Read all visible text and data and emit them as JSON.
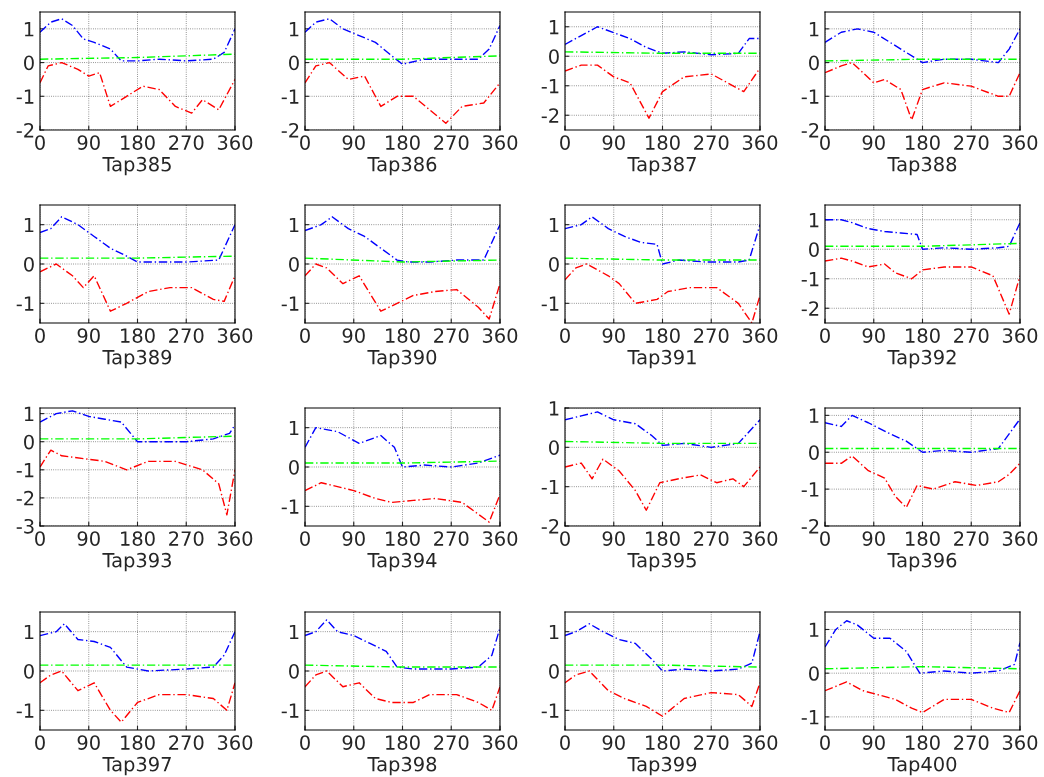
{
  "chart_data": [
    {
      "type": "line",
      "xlabel": "Tap385",
      "xlim": [
        0,
        360
      ],
      "xticks": [
        0,
        90,
        180,
        270,
        360
      ],
      "ylim": [
        -2,
        1.5
      ],
      "yticks": [
        -2,
        -1,
        0,
        1
      ],
      "grid": true,
      "line_style": "dashed",
      "series": [
        {
          "color": "#0000ff",
          "x": [
            0,
            20,
            40,
            60,
            80,
            100,
            130,
            150,
            180,
            220,
            270,
            320,
            340,
            360
          ],
          "values": [
            0.9,
            1.2,
            1.3,
            1.1,
            0.7,
            0.6,
            0.4,
            0.05,
            0.05,
            0.1,
            0.05,
            0.1,
            0.3,
            1.0
          ]
        },
        {
          "color": "#00ff00",
          "x": [
            0,
            180,
            360
          ],
          "values": [
            0.1,
            0.15,
            0.25
          ]
        },
        {
          "color": "#ff0000",
          "x": [
            0,
            15,
            40,
            70,
            90,
            110,
            130,
            160,
            190,
            220,
            250,
            280,
            300,
            330,
            360
          ],
          "values": [
            -0.6,
            -0.1,
            0,
            -0.2,
            -0.4,
            -0.3,
            -1.3,
            -1.0,
            -0.7,
            -0.8,
            -1.3,
            -1.5,
            -1.1,
            -1.4,
            -0.5
          ]
        }
      ]
    },
    {
      "type": "line",
      "xlabel": "Tap386",
      "xlim": [
        0,
        360
      ],
      "xticks": [
        0,
        90,
        180,
        270,
        360
      ],
      "ylim": [
        -2,
        1.5
      ],
      "yticks": [
        -2,
        -1,
        0,
        1
      ],
      "grid": true,
      "line_style": "dashed",
      "series": [
        {
          "color": "#0000ff",
          "x": [
            0,
            20,
            45,
            70,
            100,
            130,
            160,
            180,
            220,
            270,
            320,
            340,
            360
          ],
          "values": [
            0.9,
            1.2,
            1.3,
            1.0,
            0.8,
            0.6,
            0.2,
            -0.05,
            0.1,
            0.1,
            0.1,
            0.4,
            1.1
          ]
        },
        {
          "color": "#00ff00",
          "x": [
            0,
            180,
            360
          ],
          "values": [
            0.1,
            0.1,
            0.2
          ]
        },
        {
          "color": "#ff0000",
          "x": [
            0,
            20,
            45,
            80,
            110,
            140,
            170,
            200,
            230,
            260,
            290,
            330,
            360
          ],
          "values": [
            -0.6,
            -0.1,
            0,
            -0.5,
            -0.4,
            -1.3,
            -1.0,
            -1.0,
            -1.4,
            -1.8,
            -1.3,
            -1.2,
            -0.6
          ]
        }
      ]
    },
    {
      "type": "line",
      "xlabel": "Tap387",
      "xlim": [
        0,
        360
      ],
      "xticks": [
        0,
        90,
        180,
        270,
        360
      ],
      "ylim": [
        -2.5,
        1.5
      ],
      "yticks": [
        -2,
        -1,
        0,
        1
      ],
      "grid": true,
      "line_style": "dashed",
      "series": [
        {
          "color": "#0000ff",
          "x": [
            0,
            30,
            60,
            90,
            120,
            150,
            180,
            220,
            270,
            320,
            340,
            360
          ],
          "values": [
            0.4,
            0.7,
            1.0,
            0.8,
            0.6,
            0.3,
            0.1,
            0.15,
            0.05,
            0.1,
            0.6,
            0.6
          ]
        },
        {
          "color": "#00ff00",
          "x": [
            0,
            180,
            360
          ],
          "values": [
            0.15,
            0.1,
            0.1
          ]
        },
        {
          "color": "#ff0000",
          "x": [
            0,
            30,
            60,
            90,
            120,
            155,
            180,
            220,
            270,
            300,
            330,
            360
          ],
          "values": [
            -0.5,
            -0.3,
            -0.3,
            -0.7,
            -0.9,
            -2.1,
            -1.2,
            -0.7,
            -0.6,
            -0.9,
            -1.2,
            -0.4
          ]
        }
      ]
    },
    {
      "type": "line",
      "xlabel": "Tap388",
      "xlim": [
        0,
        360
      ],
      "xticks": [
        0,
        90,
        180,
        270,
        360
      ],
      "ylim": [
        -2,
        1.5
      ],
      "yticks": [
        -2,
        -1,
        0,
        1
      ],
      "grid": true,
      "line_style": "dashed",
      "series": [
        {
          "color": "#0000ff",
          "x": [
            0,
            30,
            60,
            90,
            120,
            150,
            180,
            220,
            270,
            320,
            340,
            360
          ],
          "values": [
            0.6,
            0.9,
            1.0,
            0.9,
            0.6,
            0.3,
            0.0,
            0.1,
            0.1,
            0.0,
            0.4,
            1.0
          ]
        },
        {
          "color": "#00ff00",
          "x": [
            0,
            180,
            360
          ],
          "values": [
            0.05,
            0.1,
            0.1
          ]
        },
        {
          "color": "#ff0000",
          "x": [
            0,
            30,
            50,
            90,
            110,
            140,
            160,
            180,
            220,
            270,
            320,
            340,
            360
          ],
          "values": [
            -0.3,
            -0.1,
            0,
            -0.6,
            -0.5,
            -0.8,
            -1.7,
            -0.8,
            -0.6,
            -0.7,
            -1.0,
            -1.0,
            -0.3
          ]
        }
      ]
    },
    {
      "type": "line",
      "xlabel": "Tap389",
      "xlim": [
        0,
        360
      ],
      "xticks": [
        0,
        90,
        180,
        270,
        360
      ],
      "ylim": [
        -1.5,
        1.5
      ],
      "yticks": [
        -1,
        0,
        1
      ],
      "grid": true,
      "line_style": "dashed",
      "series": [
        {
          "color": "#0000ff",
          "x": [
            0,
            20,
            40,
            70,
            100,
            130,
            160,
            180,
            220,
            270,
            330,
            360
          ],
          "values": [
            0.8,
            0.9,
            1.2,
            1.0,
            0.7,
            0.4,
            0.2,
            0.05,
            0.05,
            0.05,
            0.1,
            1.0
          ]
        },
        {
          "color": "#00ff00",
          "x": [
            0,
            180,
            360
          ],
          "values": [
            0.15,
            0.15,
            0.2
          ]
        },
        {
          "color": "#ff0000",
          "x": [
            0,
            30,
            60,
            80,
            100,
            130,
            160,
            200,
            240,
            280,
            320,
            340,
            360
          ],
          "values": [
            -0.2,
            0,
            -0.3,
            -0.6,
            -0.3,
            -1.2,
            -1.0,
            -0.7,
            -0.6,
            -0.6,
            -0.9,
            -0.95,
            -0.3
          ]
        }
      ]
    },
    {
      "type": "line",
      "xlabel": "Tap390",
      "xlim": [
        0,
        360
      ],
      "xticks": [
        0,
        90,
        180,
        270,
        360
      ],
      "ylim": [
        -1.5,
        1.5
      ],
      "yticks": [
        -1,
        0,
        1
      ],
      "grid": true,
      "line_style": "dashed",
      "series": [
        {
          "color": "#0000ff",
          "x": [
            0,
            30,
            50,
            80,
            110,
            140,
            170,
            190,
            230,
            280,
            330,
            360
          ],
          "values": [
            0.85,
            1.0,
            1.2,
            0.9,
            0.7,
            0.4,
            0.1,
            0.05,
            0.05,
            0.1,
            0.1,
            1.0
          ]
        },
        {
          "color": "#00ff00",
          "x": [
            0,
            180,
            360
          ],
          "values": [
            0.15,
            0.05,
            0.1
          ]
        },
        {
          "color": "#ff0000",
          "x": [
            0,
            20,
            40,
            70,
            100,
            140,
            170,
            200,
            240,
            280,
            320,
            340,
            360
          ],
          "values": [
            -0.3,
            0,
            -0.1,
            -0.5,
            -0.3,
            -1.2,
            -1.0,
            -0.8,
            -0.7,
            -0.65,
            -1.1,
            -1.4,
            -0.5
          ]
        }
      ]
    },
    {
      "type": "line",
      "xlabel": "Tap391",
      "xlim": [
        0,
        360
      ],
      "xticks": [
        0,
        90,
        180,
        270,
        360
      ],
      "ylim": [
        -1.5,
        1.5
      ],
      "yticks": [
        -1,
        0,
        1
      ],
      "grid": true,
      "line_style": "dashed",
      "series": [
        {
          "color": "#0000ff",
          "x": [
            0,
            30,
            50,
            80,
            110,
            140,
            170,
            180,
            210,
            260,
            320,
            340,
            360
          ],
          "values": [
            0.9,
            1.0,
            1.2,
            0.9,
            0.7,
            0.55,
            0.5,
            0.0,
            0.1,
            0.05,
            0.05,
            0.1,
            1.0
          ]
        },
        {
          "color": "#00ff00",
          "x": [
            0,
            180,
            360
          ],
          "values": [
            0.15,
            0.1,
            0.1
          ]
        },
        {
          "color": "#ff0000",
          "x": [
            0,
            20,
            40,
            80,
            100,
            130,
            170,
            190,
            230,
            280,
            320,
            345,
            360
          ],
          "values": [
            -0.4,
            -0.1,
            0,
            -0.3,
            -0.5,
            -1.0,
            -0.9,
            -0.7,
            -0.6,
            -0.6,
            -1.0,
            -1.5,
            -0.8
          ]
        }
      ]
    },
    {
      "type": "line",
      "xlabel": "Tap392",
      "xlim": [
        0,
        360
      ],
      "xticks": [
        0,
        90,
        180,
        270,
        360
      ],
      "ylim": [
        -2.5,
        1.5
      ],
      "yticks": [
        -2,
        -1,
        0,
        1
      ],
      "grid": true,
      "line_style": "dashed",
      "series": [
        {
          "color": "#0000ff",
          "x": [
            0,
            30,
            50,
            80,
            110,
            140,
            170,
            180,
            220,
            270,
            320,
            340,
            360
          ],
          "values": [
            1.0,
            1.0,
            0.9,
            0.7,
            0.6,
            0.55,
            0.5,
            0.0,
            0.05,
            0.0,
            0.05,
            0.1,
            0.9
          ]
        },
        {
          "color": "#00ff00",
          "x": [
            0,
            180,
            360
          ],
          "values": [
            0.1,
            0.1,
            0.2
          ]
        },
        {
          "color": "#ff0000",
          "x": [
            0,
            30,
            50,
            80,
            110,
            130,
            160,
            180,
            220,
            270,
            310,
            340,
            360
          ],
          "values": [
            -0.4,
            -0.3,
            -0.4,
            -0.6,
            -0.5,
            -0.8,
            -1.0,
            -0.7,
            -0.6,
            -0.6,
            -0.9,
            -2.2,
            -0.9
          ]
        }
      ]
    },
    {
      "type": "line",
      "xlabel": "Tap393",
      "xlim": [
        0,
        360
      ],
      "xticks": [
        0,
        90,
        180,
        270,
        360
      ],
      "ylim": [
        -3,
        1.2
      ],
      "yticks": [
        -3,
        -2,
        -1,
        0,
        1
      ],
      "grid": true,
      "line_style": "dashed",
      "series": [
        {
          "color": "#0000ff",
          "x": [
            0,
            30,
            60,
            90,
            120,
            150,
            180,
            220,
            270,
            320,
            350,
            360
          ],
          "values": [
            0.7,
            1.0,
            1.1,
            0.9,
            0.8,
            0.7,
            0.0,
            0.0,
            0.0,
            0.1,
            0.3,
            0.6
          ]
        },
        {
          "color": "#00ff00",
          "x": [
            0,
            180,
            360
          ],
          "values": [
            0.1,
            0.1,
            0.2
          ]
        },
        {
          "color": "#ff0000",
          "x": [
            0,
            20,
            40,
            80,
            120,
            160,
            200,
            250,
            300,
            330,
            345,
            360
          ],
          "values": [
            -0.9,
            -0.3,
            -0.5,
            -0.6,
            -0.7,
            -1.0,
            -0.7,
            -0.7,
            -1.0,
            -1.5,
            -2.6,
            -1.0
          ]
        }
      ]
    },
    {
      "type": "line",
      "xlabel": "Tap394",
      "xlim": [
        0,
        360
      ],
      "xticks": [
        0,
        90,
        180,
        270,
        360
      ],
      "ylim": [
        -1.5,
        1.5
      ],
      "yticks": [
        -1,
        0,
        1
      ],
      "grid": true,
      "line_style": "dashed",
      "series": [
        {
          "color": "#0000ff",
          "x": [
            0,
            20,
            60,
            100,
            140,
            165,
            180,
            220,
            270,
            320,
            360
          ],
          "values": [
            0.5,
            1.0,
            0.9,
            0.6,
            0.8,
            0.5,
            0.0,
            0.05,
            0.0,
            0.1,
            0.3
          ]
        },
        {
          "color": "#00ff00",
          "x": [
            0,
            180,
            360
          ],
          "values": [
            0.1,
            0.1,
            0.15
          ]
        },
        {
          "color": "#ff0000",
          "x": [
            0,
            30,
            60,
            90,
            130,
            160,
            200,
            240,
            290,
            340,
            360
          ],
          "values": [
            -0.6,
            -0.4,
            -0.5,
            -0.6,
            -0.8,
            -0.9,
            -0.85,
            -0.8,
            -0.9,
            -1.4,
            -0.7
          ]
        }
      ]
    },
    {
      "type": "line",
      "xlabel": "Tap395",
      "xlim": [
        0,
        360
      ],
      "xticks": [
        0,
        90,
        180,
        270,
        360
      ],
      "ylim": [
        -2,
        1
      ],
      "yticks": [
        -2,
        -1,
        0,
        1
      ],
      "grid": true,
      "line_style": "dashed",
      "series": [
        {
          "color": "#0000ff",
          "x": [
            0,
            30,
            60,
            90,
            130,
            160,
            180,
            220,
            270,
            320,
            360
          ],
          "values": [
            0.7,
            0.8,
            0.9,
            0.7,
            0.6,
            0.3,
            0.05,
            0.1,
            0.0,
            0.1,
            0.7
          ]
        },
        {
          "color": "#00ff00",
          "x": [
            0,
            180,
            360
          ],
          "values": [
            0.15,
            0.1,
            0.1
          ]
        },
        {
          "color": "#ff0000",
          "x": [
            0,
            30,
            50,
            70,
            100,
            130,
            150,
            175,
            210,
            250,
            280,
            310,
            330,
            360
          ],
          "values": [
            -0.5,
            -0.4,
            -0.8,
            -0.3,
            -0.6,
            -1.1,
            -1.6,
            -0.9,
            -0.8,
            -0.7,
            -0.9,
            -0.8,
            -1.0,
            -0.5
          ]
        }
      ]
    },
    {
      "type": "line",
      "xlabel": "Tap396",
      "xlim": [
        0,
        360
      ],
      "xticks": [
        0,
        90,
        180,
        270,
        360
      ],
      "ylim": [
        -2,
        1.2
      ],
      "yticks": [
        -2,
        -1,
        0,
        1
      ],
      "grid": true,
      "line_style": "dashed",
      "series": [
        {
          "color": "#0000ff",
          "x": [
            0,
            30,
            50,
            80,
            120,
            150,
            180,
            220,
            270,
            320,
            360
          ],
          "values": [
            0.8,
            0.7,
            1.0,
            0.8,
            0.5,
            0.3,
            0.0,
            0.05,
            0.0,
            0.1,
            0.9
          ]
        },
        {
          "color": "#00ff00",
          "x": [
            0,
            180,
            360
          ],
          "values": [
            0.1,
            0.1,
            0.1
          ]
        },
        {
          "color": "#ff0000",
          "x": [
            0,
            30,
            50,
            80,
            110,
            130,
            150,
            170,
            200,
            240,
            280,
            320,
            340,
            360
          ],
          "values": [
            -0.3,
            -0.3,
            -0.1,
            -0.5,
            -0.7,
            -1.2,
            -1.5,
            -0.9,
            -1.0,
            -0.8,
            -0.9,
            -0.8,
            -0.6,
            -0.3
          ]
        }
      ]
    },
    {
      "type": "line",
      "xlabel": "Tap397",
      "xlim": [
        0,
        360
      ],
      "xticks": [
        0,
        90,
        180,
        270,
        360
      ],
      "ylim": [
        -1.5,
        1.5
      ],
      "yticks": [
        -1,
        0,
        1
      ],
      "grid": true,
      "line_style": "dashed",
      "series": [
        {
          "color": "#0000ff",
          "x": [
            0,
            30,
            45,
            70,
            100,
            130,
            160,
            200,
            270,
            320,
            340,
            360
          ],
          "values": [
            0.9,
            1.0,
            1.2,
            0.8,
            0.75,
            0.6,
            0.1,
            0.0,
            0.05,
            0.1,
            0.4,
            1.0
          ]
        },
        {
          "color": "#00ff00",
          "x": [
            0,
            180,
            360
          ],
          "values": [
            0.15,
            0.15,
            0.15
          ]
        },
        {
          "color": "#ff0000",
          "x": [
            0,
            20,
            40,
            70,
            100,
            130,
            150,
            180,
            220,
            270,
            320,
            345,
            360
          ],
          "values": [
            -0.3,
            -0.1,
            0,
            -0.5,
            -0.3,
            -1.0,
            -1.3,
            -0.8,
            -0.6,
            -0.6,
            -0.7,
            -1.0,
            -0.3
          ]
        }
      ]
    },
    {
      "type": "line",
      "xlabel": "Tap398",
      "xlim": [
        0,
        360
      ],
      "xticks": [
        0,
        90,
        180,
        270,
        360
      ],
      "ylim": [
        -1.5,
        1.5
      ],
      "yticks": [
        -1,
        0,
        1
      ],
      "grid": true,
      "line_style": "dashed",
      "series": [
        {
          "color": "#0000ff",
          "x": [
            0,
            20,
            40,
            60,
            90,
            120,
            150,
            170,
            200,
            270,
            320,
            345,
            360
          ],
          "values": [
            0.9,
            1.0,
            1.3,
            1.0,
            0.9,
            0.7,
            0.5,
            0.1,
            0.05,
            0.05,
            0.1,
            0.4,
            1.1
          ]
        },
        {
          "color": "#00ff00",
          "x": [
            0,
            180,
            360
          ],
          "values": [
            0.15,
            0.1,
            0.1
          ]
        },
        {
          "color": "#ff0000",
          "x": [
            0,
            20,
            40,
            70,
            100,
            130,
            160,
            200,
            230,
            280,
            320,
            345,
            360
          ],
          "values": [
            -0.4,
            -0.1,
            0,
            -0.4,
            -0.3,
            -0.7,
            -0.8,
            -0.8,
            -0.6,
            -0.6,
            -0.8,
            -1.0,
            -0.4
          ]
        }
      ]
    },
    {
      "type": "line",
      "xlabel": "Tap399",
      "xlim": [
        0,
        360
      ],
      "xticks": [
        0,
        90,
        180,
        270,
        360
      ],
      "ylim": [
        -1.5,
        1.5
      ],
      "yticks": [
        -1,
        0,
        1
      ],
      "grid": true,
      "line_style": "dashed",
      "series": [
        {
          "color": "#0000ff",
          "x": [
            0,
            20,
            45,
            70,
            100,
            130,
            160,
            180,
            220,
            270,
            320,
            345,
            360
          ],
          "values": [
            0.9,
            1.0,
            1.2,
            1.0,
            0.8,
            0.7,
            0.3,
            0.0,
            0.05,
            0.0,
            0.05,
            0.2,
            1.0
          ]
        },
        {
          "color": "#00ff00",
          "x": [
            0,
            180,
            360
          ],
          "values": [
            0.15,
            0.15,
            0.1
          ]
        },
        {
          "color": "#ff0000",
          "x": [
            0,
            20,
            45,
            80,
            110,
            150,
            180,
            220,
            270,
            320,
            345,
            360
          ],
          "values": [
            -0.3,
            -0.1,
            0,
            -0.5,
            -0.7,
            -0.9,
            -1.15,
            -0.7,
            -0.55,
            -0.6,
            -0.9,
            -0.3
          ]
        }
      ]
    },
    {
      "type": "line",
      "xlabel": "Tap400",
      "xlim": [
        0,
        360
      ],
      "xticks": [
        0,
        90,
        180,
        270,
        360
      ],
      "ylim": [
        -1.3,
        1.4
      ],
      "yticks": [
        -1,
        0,
        1
      ],
      "grid": true,
      "line_style": "dashed",
      "series": [
        {
          "color": "#0000ff",
          "x": [
            0,
            20,
            40,
            60,
            90,
            120,
            150,
            175,
            220,
            270,
            320,
            350,
            360
          ],
          "values": [
            0.6,
            1.0,
            1.2,
            1.1,
            0.8,
            0.8,
            0.5,
            0.0,
            0.05,
            0.0,
            0.05,
            0.2,
            0.7
          ]
        },
        {
          "color": "#00ff00",
          "x": [
            0,
            180,
            360
          ],
          "values": [
            0.1,
            0.15,
            0.1
          ]
        },
        {
          "color": "#ff0000",
          "x": [
            0,
            20,
            40,
            70,
            100,
            130,
            160,
            180,
            220,
            270,
            310,
            340,
            360
          ],
          "values": [
            -0.4,
            -0.3,
            -0.2,
            -0.4,
            -0.5,
            -0.6,
            -0.8,
            -0.9,
            -0.6,
            -0.6,
            -0.8,
            -0.9,
            -0.4
          ]
        }
      ]
    }
  ]
}
